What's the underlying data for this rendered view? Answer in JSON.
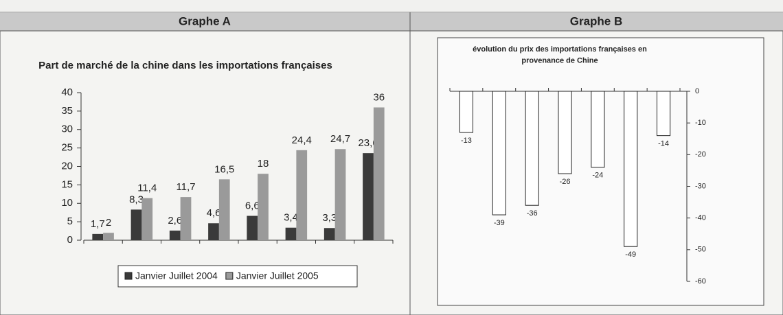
{
  "headers": [
    "Graphe A",
    "Graphe B"
  ],
  "chart_data": [
    {
      "type": "bar",
      "title": "Part de marché de la chine dans les importations françaises",
      "categories": [
        null,
        null,
        null,
        null,
        null,
        null,
        null,
        null
      ],
      "series": [
        {
          "name": "Janvier Juillet 2004",
          "color": "#3a3a3a",
          "values": [
            1.7,
            8.3,
            2.6,
            4.6,
            6.6,
            3.4,
            3.3,
            23.6
          ],
          "value_labels": [
            "1,7",
            "8,3",
            "2,6",
            "4,6",
            "6,6",
            "3,4",
            "3,3",
            "23,6"
          ]
        },
        {
          "name": "Janvier Juillet 2005",
          "color": "#9a9a9a",
          "values": [
            2,
            11.4,
            11.7,
            16.5,
            18,
            24.4,
            24.7,
            36
          ],
          "value_labels": [
            "2",
            "11,4",
            "11,7",
            "16,5",
            "18",
            "24,4",
            "24,7",
            "36"
          ]
        }
      ],
      "ylim": [
        0,
        40
      ],
      "yticks": [
        0,
        5,
        10,
        15,
        20,
        25,
        30,
        35,
        40
      ],
      "legend": "bottom"
    },
    {
      "type": "bar",
      "title": "évolution du prix des importations françaises en provenance de Chine",
      "categories": [
        null,
        null,
        null,
        null,
        null,
        null,
        null
      ],
      "values": [
        -13,
        -39,
        -36,
        -26,
        -24,
        -49,
        -14
      ],
      "color": "#ffffff",
      "ylim": [
        -60,
        0
      ],
      "yticks": [
        0,
        -10,
        -20,
        -30,
        -40,
        -50,
        -60
      ],
      "axis_side": "right"
    }
  ]
}
